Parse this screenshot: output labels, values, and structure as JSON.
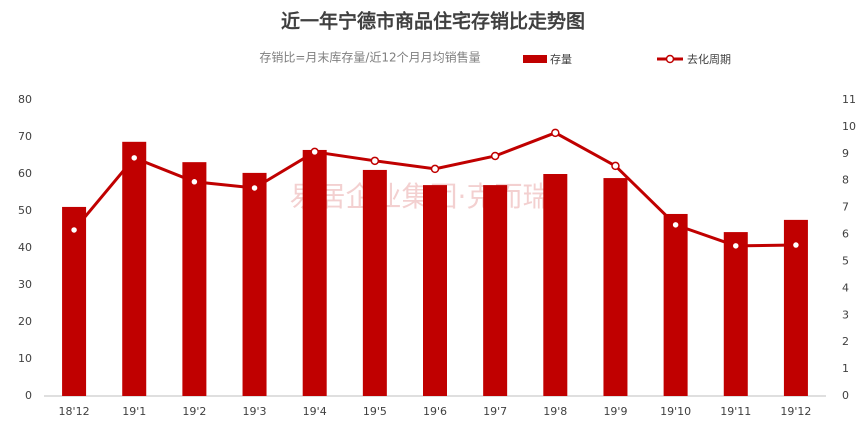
{
  "chart_data": {
    "type": "bar",
    "title": "近一年宁德市商品住宅存销比走势图",
    "subtitle": "存销比=月末库存量/近12个月月均销售量",
    "watermark": "易居企业集团·克而瑞",
    "categories": [
      "18'12",
      "19'1",
      "19'2",
      "19'3",
      "19'4",
      "19'5",
      "19'6",
      "19'7",
      "19'8",
      "19'9",
      "19'10",
      "19'11",
      "19'12"
    ],
    "series": [
      {
        "name": "存量",
        "type": "bar",
        "color": "#c00000",
        "values": [
          51.1,
          68.7,
          63.2,
          60.3,
          66.5,
          61.1,
          57,
          57,
          60,
          58.9,
          49.2,
          44.3,
          47.6
        ]
      },
      {
        "name": "去化周期",
        "type": "line",
        "axis": "y2",
        "color": "#c00000",
        "values": [
          6.17,
          8.85,
          7.96,
          7.73,
          9.07,
          8.74,
          8.44,
          8.92,
          9.78,
          8.55,
          6.36,
          5.58,
          5.61
        ]
      }
    ],
    "ylim": [
      0,
      80
    ],
    "yticks": [
      0,
      10,
      20,
      30,
      40,
      50,
      60,
      70,
      80
    ],
    "y2lim": [
      0,
      11
    ],
    "y2ticks": [
      0,
      1,
      2,
      3,
      4,
      5,
      6,
      7,
      8,
      9,
      10,
      11
    ],
    "grid": false
  }
}
